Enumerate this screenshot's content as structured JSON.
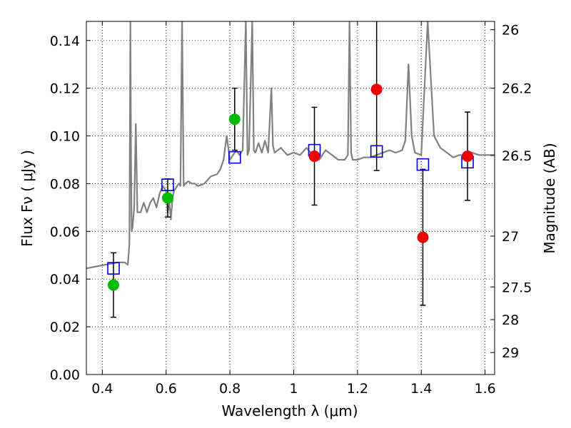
{
  "chart_data": {
    "type": "scatter",
    "xlabel": "Wavelength  λ (μm)",
    "ylabel": "Flux  Fν  ( μJy )",
    "ylabel_right": "Magnitude (AB)",
    "xlim": [
      0.35,
      1.63
    ],
    "ylim": [
      0.0,
      0.148
    ],
    "grid": true,
    "x_ticks": [
      0.4,
      0.6,
      0.8,
      1.0,
      1.2,
      1.4,
      1.6
    ],
    "x_tick_labels": [
      "0.4",
      "0.6",
      "0.8",
      "1",
      "1.2",
      "1.4",
      "1.6"
    ],
    "y_ticks": [
      0.0,
      0.02,
      0.04,
      0.06,
      0.08,
      0.1,
      0.12,
      0.14
    ],
    "y_tick_labels": [
      "0.00",
      "0.02",
      "0.04",
      "0.06",
      "0.08",
      "0.10",
      "0.12",
      "0.14"
    ],
    "right_ticks": [
      {
        "flux": 0.1445,
        "label": "26"
      },
      {
        "flux": 0.12,
        "label": "26.2"
      },
      {
        "flux": 0.0918,
        "label": "26.5"
      },
      {
        "flux": 0.058,
        "label": "27"
      },
      {
        "flux": 0.0367,
        "label": "27.5"
      },
      {
        "flux": 0.023,
        "label": "28"
      },
      {
        "flux": 0.0092,
        "label": "29"
      }
    ],
    "colors": {
      "sed": "#808080",
      "model": "#0000cc",
      "green": "#00bb00",
      "red": "#ee0000",
      "errorbar": "#000000"
    },
    "series": [
      {
        "role": "model-sed",
        "x": [
          0.35,
          0.37,
          0.39,
          0.41,
          0.43,
          0.45,
          0.47,
          0.48,
          0.485,
          0.488,
          0.49,
          0.492,
          0.495,
          0.5,
          0.505,
          0.51,
          0.52,
          0.53,
          0.54,
          0.55,
          0.56,
          0.57,
          0.58,
          0.59,
          0.6,
          0.605,
          0.61,
          0.615,
          0.62,
          0.625,
          0.63,
          0.64,
          0.645,
          0.65,
          0.655,
          0.66,
          0.67,
          0.68,
          0.69,
          0.7,
          0.72,
          0.74,
          0.76,
          0.77,
          0.78,
          0.79,
          0.8,
          0.81,
          0.82,
          0.83,
          0.84,
          0.85,
          0.855,
          0.86,
          0.87,
          0.875,
          0.88,
          0.89,
          0.9,
          0.91,
          0.92,
          0.93,
          0.935,
          0.94,
          0.96,
          0.98,
          1.0,
          1.02,
          1.04,
          1.06,
          1.08,
          1.1,
          1.12,
          1.14,
          1.16,
          1.17,
          1.175,
          1.18,
          1.185,
          1.19,
          1.2,
          1.22,
          1.24,
          1.26,
          1.28,
          1.3,
          1.32,
          1.34,
          1.35,
          1.36,
          1.37,
          1.38,
          1.4,
          1.42,
          1.44,
          1.46,
          1.48,
          1.5,
          1.52,
          1.54,
          1.56,
          1.58,
          1.6,
          1.63
        ],
        "y": [
          0.0445,
          0.045,
          0.0455,
          0.046,
          0.0465,
          0.047,
          0.047,
          0.046,
          0.055,
          0.148,
          0.09,
          0.06,
          0.062,
          0.07,
          0.105,
          0.068,
          0.068,
          0.072,
          0.068,
          0.072,
          0.074,
          0.07,
          0.076,
          0.079,
          0.077,
          0.068,
          0.072,
          0.065,
          0.074,
          0.077,
          0.078,
          0.08,
          0.079,
          0.148,
          0.079,
          0.08,
          0.081,
          0.08,
          0.08,
          0.079,
          0.08,
          0.083,
          0.084,
          0.086,
          0.09,
          0.1,
          0.09,
          0.092,
          0.094,
          0.092,
          0.094,
          0.148,
          0.092,
          0.094,
          0.148,
          0.094,
          0.093,
          0.097,
          0.093,
          0.098,
          0.093,
          0.12,
          0.096,
          0.093,
          0.095,
          0.092,
          0.093,
          0.092,
          0.095,
          0.092,
          0.09,
          0.094,
          0.092,
          0.09,
          0.09,
          0.092,
          0.148,
          0.093,
          0.09,
          0.09,
          0.09,
          0.091,
          0.091,
          0.092,
          0.093,
          0.094,
          0.093,
          0.094,
          0.098,
          0.13,
          0.1,
          0.093,
          0.092,
          0.148,
          0.1,
          0.095,
          0.093,
          0.091,
          0.092,
          0.092,
          0.093,
          0.092,
          0.092,
          0.092
        ]
      },
      {
        "role": "model-photometry",
        "marker": "open-square",
        "x": [
          0.435,
          0.605,
          0.815,
          1.065,
          1.26,
          1.405,
          1.545
        ],
        "y": [
          0.0445,
          0.0795,
          0.091,
          0.094,
          0.0935,
          0.088,
          0.089
        ]
      },
      {
        "role": "observed",
        "marker": "filled-circle",
        "points": [
          {
            "x": 0.435,
            "y": 0.0375,
            "err": 0.0135,
            "color": "green"
          },
          {
            "x": 0.605,
            "y": 0.074,
            "err": 0.008,
            "color": "green"
          },
          {
            "x": 0.815,
            "y": 0.107,
            "err": 0.013,
            "color": "green"
          },
          {
            "x": 1.065,
            "y": 0.0915,
            "err": 0.0205,
            "color": "red"
          },
          {
            "x": 1.26,
            "y": 0.1195,
            "err": 0.034,
            "color": "red"
          },
          {
            "x": 1.405,
            "y": 0.0575,
            "err": 0.0285,
            "color": "red"
          },
          {
            "x": 1.545,
            "y": 0.0915,
            "err": 0.0185,
            "color": "red"
          }
        ]
      }
    ]
  }
}
